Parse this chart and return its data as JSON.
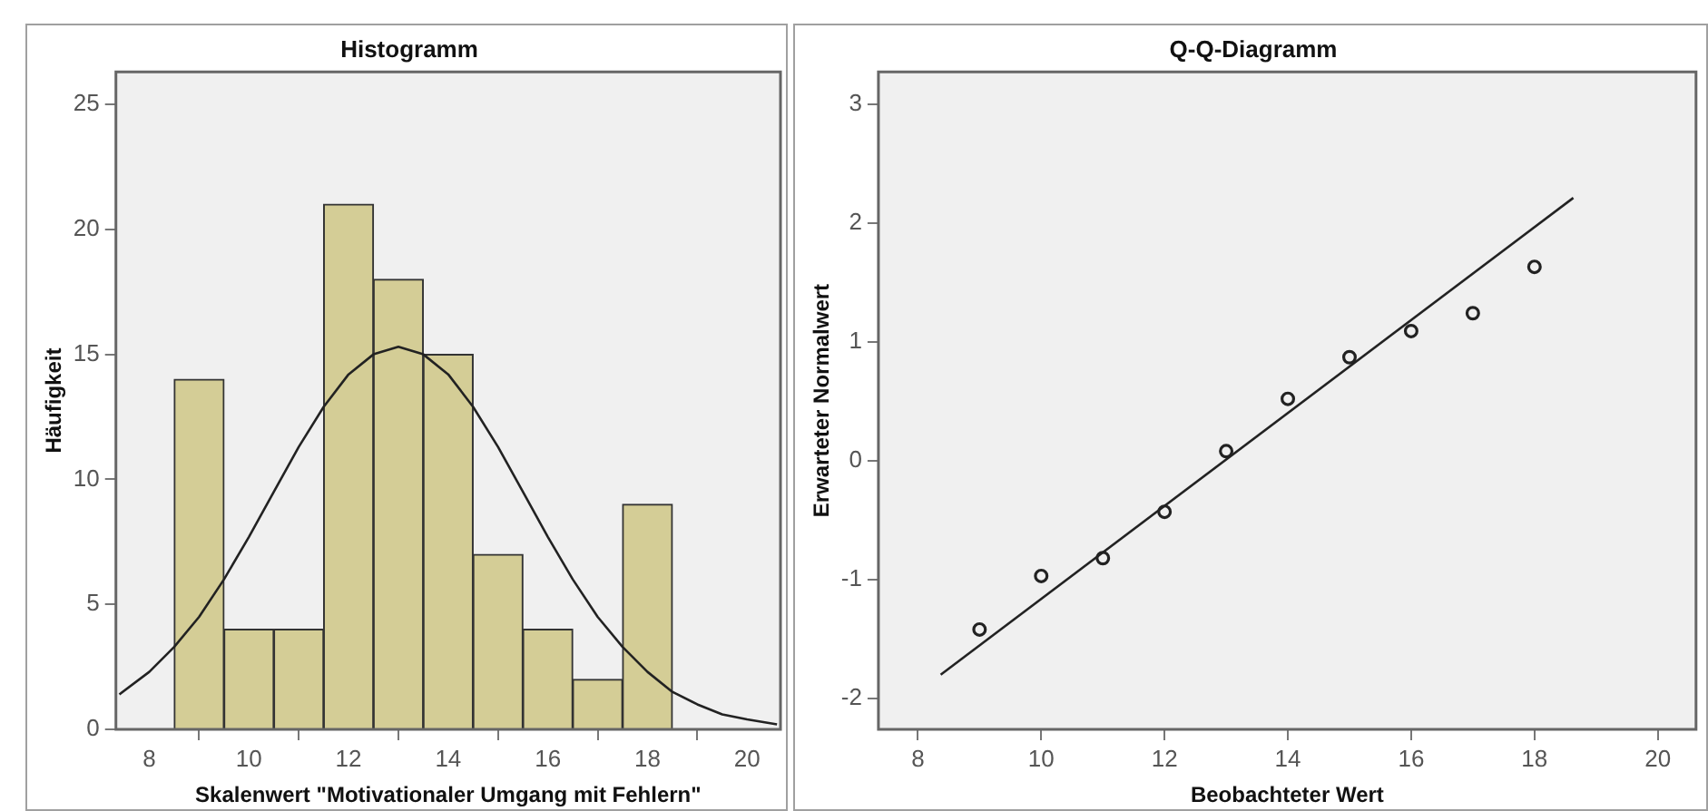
{
  "chart_data": [
    {
      "type": "histogram",
      "title": "Histogramm",
      "xlabel": "Skalenwert \"Motivationaler Umgang mit Fehlern\"",
      "ylabel": "Häufigkeit",
      "bins": [
        8.5,
        9.5,
        10.5,
        11.5,
        12.5,
        13.5,
        14.5,
        15.5,
        16.5,
        17.5,
        18.5
      ],
      "values": [
        14,
        4,
        4,
        21,
        18,
        15,
        7,
        4,
        2,
        9
      ],
      "color": "#d4cd96",
      "series": [
        {
          "type": "line",
          "color": "#222222",
          "x": [
            7.4,
            8,
            8.5,
            9,
            9.5,
            10,
            10.5,
            11,
            11.5,
            12,
            12.5,
            13,
            13.5,
            14,
            14.5,
            15,
            15.5,
            16,
            16.5,
            17,
            17.5,
            18,
            18.5,
            19,
            19.5,
            20,
            20.6
          ],
          "values": [
            1.4,
            2.3,
            3.3,
            4.5,
            6.0,
            7.7,
            9.5,
            11.3,
            12.9,
            14.2,
            15.0,
            15.3,
            15.0,
            14.2,
            12.9,
            11.3,
            9.5,
            7.7,
            6.0,
            4.5,
            3.3,
            2.3,
            1.5,
            1.0,
            0.6,
            0.4,
            0.2
          ]
        }
      ],
      "xlim": [
        7.33,
        20.67
      ],
      "xticks": [
        8,
        10,
        12,
        14,
        16,
        18,
        20
      ],
      "ylim": [
        0,
        26.3
      ],
      "yticks": [
        0,
        5,
        10,
        15,
        20,
        25
      ],
      "grid": false,
      "legend": false
    },
    {
      "type": "scatter",
      "title": "Q-Q-Diagramm",
      "xlabel": "Beobachteter Wert",
      "ylabel": "Erwarteter Normalwert",
      "series": [
        {
          "type": "scatter",
          "marker": "circle",
          "color": "#222222",
          "x": [
            9,
            10,
            11,
            12,
            13,
            14,
            15,
            16,
            17,
            18
          ],
          "values": [
            -1.42,
            -0.97,
            -0.82,
            -0.43,
            0.08,
            0.52,
            0.87,
            1.09,
            1.24,
            1.63
          ]
        },
        {
          "type": "line",
          "marker": "none",
          "color": "#222222",
          "x": [
            8.37,
            18.63
          ],
          "values": [
            -1.8,
            2.21
          ]
        }
      ],
      "xlim": [
        7.36,
        20.62
      ],
      "xticks": [
        8,
        10,
        12,
        14,
        16,
        18,
        20
      ],
      "ylim": [
        -2.26,
        3.27
      ],
      "yticks": [
        -2,
        -1,
        0,
        1,
        2,
        3
      ],
      "grid": false,
      "legend": false
    }
  ]
}
